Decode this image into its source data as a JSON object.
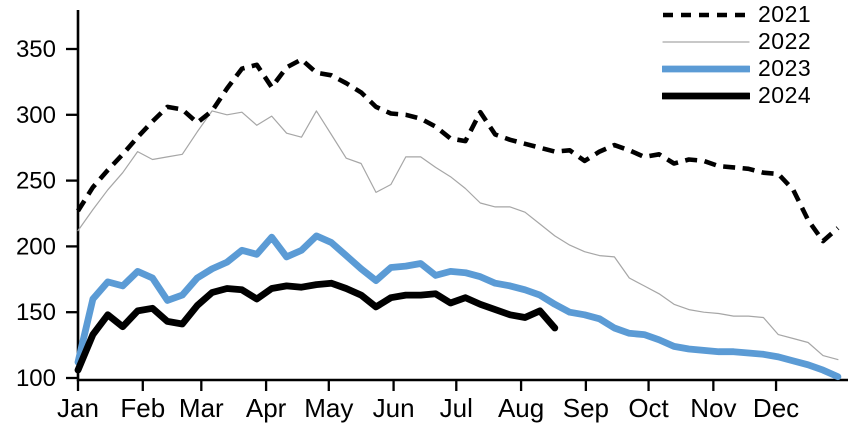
{
  "figure": {
    "background": "#ffffff",
    "text_color": "#000000"
  },
  "chart_data": {
    "type": "line",
    "title": "",
    "xlabel": "",
    "ylabel": "",
    "x_axis": {
      "months": [
        "Jan",
        "Feb",
        "Mar",
        "Apr",
        "May",
        "Jun",
        "Jul",
        "Aug",
        "Sep",
        "Oct",
        "Nov",
        "Dec"
      ]
    },
    "y_axis": {
      "min": 100,
      "max": 350,
      "ticks": [
        350,
        300,
        250,
        200,
        150,
        100
      ]
    },
    "grid": "off",
    "legend": {
      "position": "top-right",
      "entries": [
        "2021",
        "2022",
        "2023",
        "2024"
      ]
    },
    "x_resolution": "weekly",
    "series": [
      {
        "name": "2021",
        "color": "#000000",
        "line_style": "dashed",
        "thickness": 4.6,
        "values": [
          227,
          245,
          258,
          270,
          283,
          295,
          306,
          304,
          294,
          303,
          320,
          335,
          338,
          321,
          336,
          342,
          332,
          330,
          324,
          317,
          306,
          301,
          300,
          297,
          291,
          282,
          280,
          302,
          285,
          281,
          278,
          275,
          272,
          273,
          265,
          272,
          277,
          273,
          268,
          270,
          263,
          266,
          265,
          261,
          260,
          259,
          256,
          255,
          243,
          220,
          204,
          214
        ]
      },
      {
        "name": "2022",
        "color": "#a6a6a6",
        "line_style": "solid",
        "thickness": 1.2,
        "values": [
          212,
          228,
          243,
          256,
          272,
          266,
          268,
          270,
          287,
          303,
          300,
          302,
          292,
          299,
          286,
          283,
          303,
          285,
          267,
          263,
          241,
          247,
          268,
          268,
          260,
          253,
          244,
          233,
          230,
          230,
          226,
          217,
          208,
          201,
          196,
          193,
          192,
          176,
          170,
          164,
          156,
          152,
          150,
          149,
          147,
          147,
          146,
          133,
          130,
          127,
          117,
          114
        ]
      },
      {
        "name": "2023",
        "color": "#5b9bd5",
        "line_style": "solid",
        "thickness": 6.8,
        "values": [
          112,
          160,
          173,
          170,
          181,
          176,
          159,
          163,
          176,
          183,
          188,
          197,
          194,
          207,
          192,
          197,
          208,
          203,
          193,
          183,
          174,
          184,
          185,
          187,
          178,
          181,
          180,
          177,
          172,
          170,
          167,
          163,
          156,
          150,
          148,
          145,
          138,
          134,
          133,
          129,
          124,
          122,
          121,
          120,
          120,
          119,
          118,
          116,
          113,
          110,
          106,
          101
        ]
      },
      {
        "name": "2024",
        "color": "#000000",
        "line_style": "solid",
        "thickness": 6.8,
        "values": [
          106,
          133,
          148,
          139,
          151,
          153,
          143,
          141,
          155,
          165,
          168,
          167,
          160,
          168,
          170,
          169,
          171,
          172,
          168,
          163,
          154,
          161,
          163,
          163,
          164,
          157,
          161,
          156,
          152,
          148,
          146,
          151,
          138
        ]
      }
    ]
  }
}
